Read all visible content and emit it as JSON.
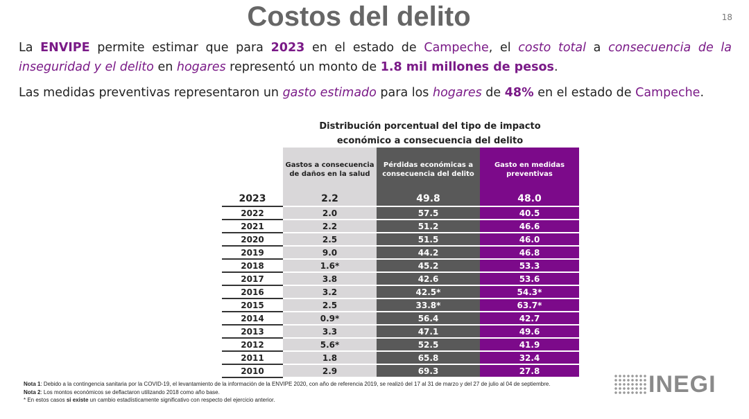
{
  "header": {
    "title": "Costos del delito",
    "page_number": "18"
  },
  "paragraphs": [
    {
      "runs": [
        "La ",
        "ENVIPE",
        " permite estimar que para ",
        "2023",
        " en el estado de ",
        "Campeche",
        ", el ",
        "costo total",
        " a ",
        "consecuencia de la inseguridad y el delito",
        " en ",
        "hogares",
        " representó un monto de ",
        "1.8 mil millones de pesos",
        "."
      ]
    },
    {
      "runs": [
        "Las medidas preventivas representaron un ",
        "gasto estimado",
        " para los ",
        "hogares",
        " de ",
        "48%",
        " en el estado de ",
        "Campeche",
        "."
      ]
    }
  ],
  "table": {
    "title": "Distribución porcentual del tipo de impacto económico a consecuencia del delito",
    "headers": [
      "Gastos a consecuencia de daños en la salud",
      "Pérdidas económicas a consecuencia del delito",
      "Gasto en medidas preventivas"
    ],
    "rows": [
      [
        "2023",
        "2.2",
        "49.8",
        "48.0"
      ],
      [
        "2022",
        "2.0",
        "57.5",
        "40.5"
      ],
      [
        "2021",
        "2.2",
        "51.2",
        "46.6"
      ],
      [
        "2020",
        "2.5",
        "51.5",
        "46.0"
      ],
      [
        "2019",
        "9.0",
        "44.2",
        "46.8"
      ],
      [
        "2018",
        "1.6*",
        "45.2",
        "53.3"
      ],
      [
        "2017",
        "3.8",
        "42.6",
        "53.6"
      ],
      [
        "2016",
        "3.2",
        "42.5*",
        "54.3*"
      ],
      [
        "2015",
        "2.5",
        "33.8*",
        "63.7*"
      ],
      [
        "2014",
        "0.9*",
        "56.4",
        "42.7"
      ],
      [
        "2013",
        "3.3",
        "47.1",
        "49.6"
      ],
      [
        "2012",
        "5.6*",
        "52.5",
        "41.9"
      ],
      [
        "2011",
        "1.8",
        "65.8",
        "32.4"
      ],
      [
        "2010",
        "2.9",
        "69.3",
        "27.8"
      ]
    ]
  },
  "notes": [
    {
      "runs": [
        "Nota 1",
        ": Debido a la contingencia sanitaria por la COVID-19, el levantamiento de la información de la ENVIPE 2020, con año de referencia 2019, se realizó del 17 al 31 de marzo y del 27 de julio al 04 de septiembre."
      ]
    },
    {
      "runs": [
        "Nota 2",
        ": Los montos económicos se deflactaron utilizando 2018 como año base."
      ]
    },
    {
      "runs": [
        "* En estos casos ",
        "si existe",
        " un cambio estadísticamente significativo con respecto del ejercicio anterior."
      ]
    }
  ],
  "logo": "INEGI"
}
